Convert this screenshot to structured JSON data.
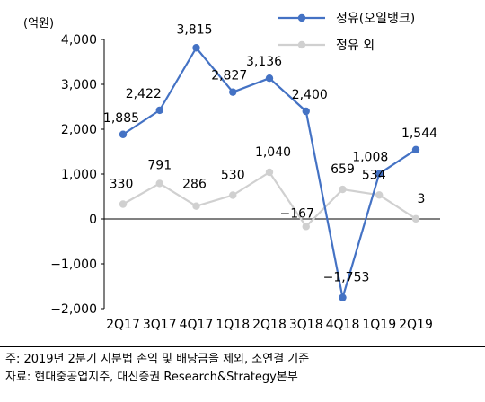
{
  "chart_data": {
    "type": "line",
    "ylabel": "(억원)",
    "ylim": [
      -2000,
      4000
    ],
    "yticks": [
      "4,000",
      "3,000",
      "2,000",
      "1,000",
      "0",
      "−1,000",
      "−2,000"
    ],
    "ytick_values": [
      4000,
      3000,
      2000,
      1000,
      0,
      -1000,
      -2000
    ],
    "categories": [
      "2Q17",
      "3Q17",
      "4Q17",
      "1Q18",
      "2Q18",
      "3Q18",
      "4Q18",
      "1Q19",
      "2Q19"
    ],
    "legend_position": "top-right",
    "grid": false,
    "series": [
      {
        "name": "정유(오일뱅크)",
        "color": "#4472c4",
        "values": [
          1885,
          2422,
          3815,
          2827,
          3136,
          2400,
          -1753,
          1008,
          1544
        ],
        "labels": [
          "1,885",
          "2,422",
          "3,815",
          "2,827",
          "3,136",
          "2,400",
          "−1,753",
          "1,008",
          "1,544"
        ]
      },
      {
        "name": "정유 외",
        "color": "#d0d0d0",
        "values": [
          330,
          791,
          286,
          530,
          1040,
          -167,
          659,
          534,
          3
        ],
        "labels": [
          "330",
          "791",
          "286",
          "530",
          "1,040",
          "−167",
          "659",
          "534",
          "3"
        ]
      }
    ]
  },
  "footer": {
    "note": "주: 2019년 2분기 지분법 손익 및 배당금을 제외, 소연결 기준",
    "source": "자료: 현대중공업지주, 대신증권 Research&Strategy본부"
  }
}
